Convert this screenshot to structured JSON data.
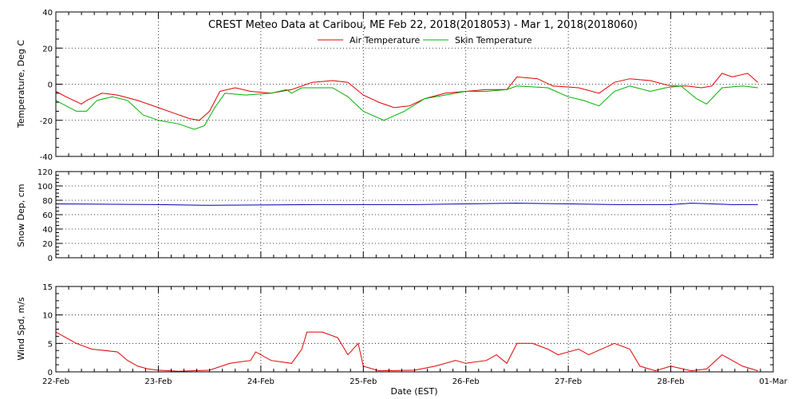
{
  "chart_data": [
    {
      "type": "line",
      "panel": "temperature",
      "title": "CREST Meteo Data at Caribou, ME   Feb 22, 2018(2018053) - Mar  1, 2018(2018060)",
      "ylabel": "Temperature, Deg C",
      "ylim": [
        -40,
        40
      ],
      "yticks": [
        -40,
        -20,
        0,
        20,
        40
      ],
      "grid": true,
      "legend": "top-center",
      "colors": {
        "air": "#e00000",
        "skin": "#00b000"
      },
      "series": [
        {
          "name": "Air Temperature",
          "points": [
            [
              0,
              -4
            ],
            [
              0.1,
              -7
            ],
            [
              0.25,
              -11
            ],
            [
              0.3,
              -9
            ],
            [
              0.45,
              -5
            ],
            [
              0.6,
              -6
            ],
            [
              0.8,
              -9
            ],
            [
              1.0,
              -13
            ],
            [
              1.15,
              -16
            ],
            [
              1.3,
              -19
            ],
            [
              1.4,
              -20
            ],
            [
              1.5,
              -15
            ],
            [
              1.6,
              -4
            ],
            [
              1.75,
              -2
            ],
            [
              1.9,
              -4
            ],
            [
              2.1,
              -5
            ],
            [
              2.3,
              -3
            ],
            [
              2.5,
              1
            ],
            [
              2.7,
              2
            ],
            [
              2.85,
              1
            ],
            [
              3.0,
              -6
            ],
            [
              3.15,
              -10
            ],
            [
              3.3,
              -13
            ],
            [
              3.45,
              -12
            ],
            [
              3.6,
              -8
            ],
            [
              3.8,
              -5
            ],
            [
              4.0,
              -4
            ],
            [
              4.2,
              -3
            ],
            [
              4.4,
              -3
            ],
            [
              4.5,
              4
            ],
            [
              4.7,
              3
            ],
            [
              4.85,
              -1
            ],
            [
              5.1,
              -2
            ],
            [
              5.3,
              -5
            ],
            [
              5.45,
              1
            ],
            [
              5.6,
              3
            ],
            [
              5.8,
              2
            ],
            [
              6.0,
              -1
            ],
            [
              6.15,
              -1
            ],
            [
              6.3,
              -2
            ],
            [
              6.4,
              -1
            ],
            [
              6.5,
              6
            ],
            [
              6.6,
              4
            ],
            [
              6.75,
              6
            ],
            [
              6.85,
              1
            ]
          ]
        },
        {
          "name": "Skin Temperature",
          "points": [
            [
              0,
              -9
            ],
            [
              0.2,
              -15
            ],
            [
              0.3,
              -15
            ],
            [
              0.4,
              -9
            ],
            [
              0.55,
              -7
            ],
            [
              0.7,
              -9
            ],
            [
              0.85,
              -17
            ],
            [
              1.0,
              -20
            ],
            [
              1.2,
              -22
            ],
            [
              1.35,
              -25
            ],
            [
              1.45,
              -23
            ],
            [
              1.55,
              -13
            ],
            [
              1.65,
              -5
            ],
            [
              1.85,
              -6
            ],
            [
              2.1,
              -5
            ],
            [
              2.25,
              -3
            ],
            [
              2.3,
              -5
            ],
            [
              2.4,
              -2
            ],
            [
              2.7,
              -2
            ],
            [
              2.85,
              -7
            ],
            [
              3.0,
              -15
            ],
            [
              3.2,
              -20
            ],
            [
              3.4,
              -15
            ],
            [
              3.6,
              -8
            ],
            [
              3.8,
              -6
            ],
            [
              4.0,
              -4
            ],
            [
              4.2,
              -4
            ],
            [
              4.4,
              -3
            ],
            [
              4.5,
              -1
            ],
            [
              4.8,
              -2
            ],
            [
              5.0,
              -7
            ],
            [
              5.15,
              -9
            ],
            [
              5.3,
              -12
            ],
            [
              5.45,
              -4
            ],
            [
              5.6,
              -1
            ],
            [
              5.8,
              -4
            ],
            [
              5.95,
              -2
            ],
            [
              6.1,
              -1
            ],
            [
              6.25,
              -8
            ],
            [
              6.35,
              -11
            ],
            [
              6.5,
              -2
            ],
            [
              6.7,
              -1
            ],
            [
              6.85,
              -2
            ]
          ]
        }
      ]
    },
    {
      "type": "line",
      "panel": "snow",
      "ylabel": "Snow Dep, cm",
      "ylim": [
        0,
        120
      ],
      "yticks": [
        0,
        20,
        40,
        60,
        80,
        100,
        120
      ],
      "grid": true,
      "colors": {
        "snow": "#0000b0"
      },
      "series": [
        {
          "points": [
            [
              0,
              75
            ],
            [
              1.0,
              74
            ],
            [
              1.5,
              73
            ],
            [
              2.5,
              74
            ],
            [
              3.5,
              74
            ],
            [
              4.0,
              75
            ],
            [
              4.5,
              76
            ],
            [
              5.0,
              75
            ],
            [
              5.5,
              74
            ],
            [
              6.0,
              74
            ],
            [
              6.2,
              76
            ],
            [
              6.6,
              74
            ],
            [
              6.85,
              74
            ]
          ]
        }
      ]
    },
    {
      "type": "line",
      "panel": "wind",
      "ylabel": "Wind Spd, m/s",
      "xlabel": "Date (EST)",
      "ylim": [
        0,
        15
      ],
      "yticks": [
        0,
        5,
        10,
        15
      ],
      "grid": true,
      "colors": {
        "wind": "#e00000"
      },
      "x_categories": [
        "22-Feb",
        "23-Feb",
        "24-Feb",
        "25-Feb",
        "26-Feb",
        "27-Feb",
        "28-Feb",
        "01-Mar"
      ],
      "series": [
        {
          "points": [
            [
              0,
              7
            ],
            [
              0.1,
              6
            ],
            [
              0.2,
              5
            ],
            [
              0.35,
              4
            ],
            [
              0.6,
              3.5
            ],
            [
              0.7,
              2
            ],
            [
              0.8,
              1
            ],
            [
              0.9,
              0.5
            ],
            [
              1.0,
              0.3
            ],
            [
              1.2,
              0.1
            ],
            [
              1.5,
              0.3
            ],
            [
              1.7,
              1.5
            ],
            [
              1.9,
              2
            ],
            [
              1.95,
              3.5
            ],
            [
              2.1,
              2
            ],
            [
              2.3,
              1.5
            ],
            [
              2.4,
              4
            ],
            [
              2.45,
              7
            ],
            [
              2.6,
              7
            ],
            [
              2.75,
              6
            ],
            [
              2.85,
              3
            ],
            [
              2.95,
              5
            ],
            [
              3.0,
              1
            ],
            [
              3.15,
              0.2
            ],
            [
              3.5,
              0.3
            ],
            [
              3.7,
              1
            ],
            [
              3.9,
              2
            ],
            [
              4.0,
              1.5
            ],
            [
              4.2,
              2
            ],
            [
              4.3,
              3
            ],
            [
              4.4,
              1.5
            ],
            [
              4.5,
              5
            ],
            [
              4.65,
              5
            ],
            [
              4.8,
              4
            ],
            [
              4.9,
              3
            ],
            [
              5.1,
              4
            ],
            [
              5.2,
              3
            ],
            [
              5.45,
              5
            ],
            [
              5.6,
              4
            ],
            [
              5.7,
              1
            ],
            [
              5.85,
              0.2
            ],
            [
              6.0,
              1
            ],
            [
              6.2,
              0.2
            ],
            [
              6.35,
              0.5
            ],
            [
              6.5,
              3
            ],
            [
              6.6,
              2
            ],
            [
              6.7,
              1
            ],
            [
              6.85,
              0.2
            ]
          ]
        }
      ]
    }
  ]
}
